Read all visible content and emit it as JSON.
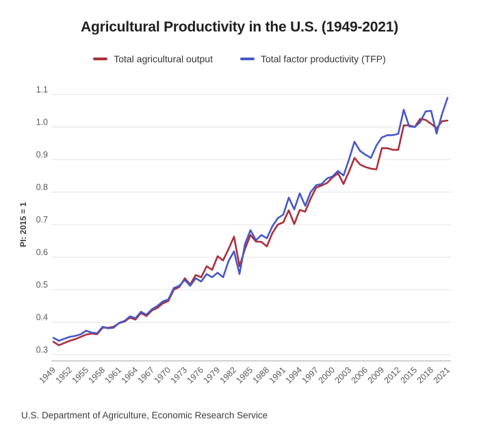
{
  "header": {
    "title": "Agricultural Productivity in the U.S. (1949-2021)"
  },
  "legend": {
    "items": [
      {
        "label": "Total agricultural output",
        "color": "#ab2f3b"
      },
      {
        "label": "Total factor productivity (TFP)",
        "color": "#4758c8"
      }
    ]
  },
  "chart_data": {
    "type": "line",
    "title": "Agricultural Productivity in the U.S. (1949-2021)",
    "xlabel": "",
    "ylabel": "PI: 2015 = 1",
    "ylim": [
      0.3,
      1.1
    ],
    "y_ticks": [
      1.1,
      1.0,
      0.9,
      0.8,
      0.7,
      0.6,
      0.5,
      0.4,
      0.3
    ],
    "x_tick_years": [
      1949,
      1952,
      1955,
      1958,
      1961,
      1964,
      1967,
      1970,
      1973,
      1976,
      1979,
      1982,
      1985,
      1988,
      1991,
      1994,
      1997,
      2000,
      2003,
      2006,
      2009,
      2012,
      2015,
      2018,
      2021
    ],
    "grid": true,
    "legend_position": "top",
    "x": [
      1949,
      1950,
      1951,
      1952,
      1953,
      1954,
      1955,
      1956,
      1957,
      1958,
      1959,
      1960,
      1961,
      1962,
      1963,
      1964,
      1965,
      1966,
      1967,
      1968,
      1969,
      1970,
      1971,
      1972,
      1973,
      1974,
      1975,
      1976,
      1977,
      1978,
      1979,
      1980,
      1981,
      1982,
      1983,
      1984,
      1985,
      1986,
      1987,
      1988,
      1989,
      1990,
      1991,
      1992,
      1993,
      1994,
      1995,
      1996,
      1997,
      1998,
      1999,
      2000,
      2001,
      2002,
      2003,
      2004,
      2005,
      2006,
      2007,
      2008,
      2009,
      2010,
      2011,
      2012,
      2013,
      2014,
      2015,
      2016,
      2017,
      2018,
      2019,
      2020,
      2021
    ],
    "series": [
      {
        "name": "Total agricultural output",
        "color": "#ab2f3b",
        "values": [
          0.34,
          0.329,
          0.336,
          0.343,
          0.348,
          0.355,
          0.362,
          0.365,
          0.363,
          0.383,
          0.383,
          0.386,
          0.397,
          0.402,
          0.414,
          0.408,
          0.428,
          0.419,
          0.436,
          0.444,
          0.458,
          0.465,
          0.5,
          0.508,
          0.535,
          0.516,
          0.545,
          0.538,
          0.572,
          0.561,
          0.603,
          0.59,
          0.625,
          0.663,
          0.572,
          0.625,
          0.668,
          0.648,
          0.647,
          0.633,
          0.674,
          0.7,
          0.707,
          0.744,
          0.702,
          0.745,
          0.74,
          0.78,
          0.814,
          0.82,
          0.828,
          0.845,
          0.858,
          0.825,
          0.863,
          0.905,
          0.885,
          0.877,
          0.872,
          0.87,
          0.935,
          0.935,
          0.93,
          0.93,
          1.005,
          1.005,
          1.0,
          1.025,
          1.022,
          1.01,
          0.996,
          1.018,
          1.02
        ]
      },
      {
        "name": "Total factor productivity (TFP)",
        "color": "#4758c8",
        "values": [
          0.352,
          0.343,
          0.349,
          0.355,
          0.358,
          0.363,
          0.374,
          0.368,
          0.366,
          0.386,
          0.381,
          0.383,
          0.398,
          0.404,
          0.418,
          0.412,
          0.432,
          0.423,
          0.44,
          0.45,
          0.464,
          0.47,
          0.505,
          0.512,
          0.53,
          0.512,
          0.535,
          0.525,
          0.548,
          0.538,
          0.552,
          0.538,
          0.588,
          0.618,
          0.548,
          0.64,
          0.683,
          0.652,
          0.668,
          0.658,
          0.695,
          0.72,
          0.731,
          0.783,
          0.747,
          0.796,
          0.758,
          0.8,
          0.821,
          0.825,
          0.842,
          0.848,
          0.865,
          0.851,
          0.9,
          0.955,
          0.927,
          0.915,
          0.905,
          0.943,
          0.968,
          0.975,
          0.975,
          0.979,
          1.053,
          1.002,
          1.0,
          1.015,
          1.048,
          1.05,
          0.98,
          1.04,
          1.09
        ]
      }
    ]
  },
  "footer": {
    "source": "U.S. Department of Agriculture, Economic Research Service"
  }
}
